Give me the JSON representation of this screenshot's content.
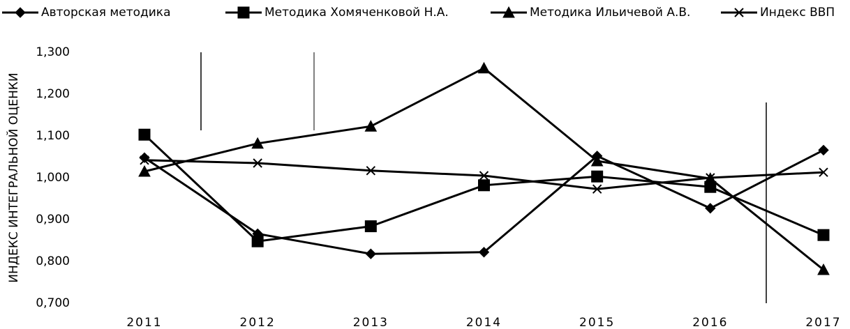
{
  "chart_data": {
    "type": "line",
    "y_label": "ИНДЕКС ИНТЕГРАЛЬНОЙ ОЦЕНКИ",
    "categories": [
      "2011",
      "2012",
      "2013",
      "2014",
      "2015",
      "2016",
      "2017"
    ],
    "series": [
      {
        "name": "Авторская методика",
        "color": "#000000",
        "marker": "diamond",
        "values": [
          1.048,
          0.866,
          0.818,
          0.822,
          1.052,
          0.927,
          1.066
        ]
      },
      {
        "name": "Методика Хомяченковой Н.А.",
        "color": "#000000",
        "marker": "square",
        "values": [
          1.103,
          0.848,
          0.884,
          0.982,
          1.003,
          0.978,
          0.863
        ]
      },
      {
        "name": "Методика Ильичевой А.В.",
        "color": "#000000",
        "marker": "triangle",
        "values": [
          1.015,
          1.082,
          1.123,
          1.262,
          1.04,
          0.998,
          0.78
        ]
      },
      {
        "name": "Индекс ВВП",
        "color": "#000000",
        "marker": "x",
        "values": [
          1.042,
          1.035,
          1.017,
          1.005,
          0.973,
          1.0,
          1.013
        ]
      }
    ],
    "ylim": [
      0.7,
      1.3
    ],
    "yticks": [
      {
        "value": 0.7,
        "label": "0,700"
      },
      {
        "value": 0.8,
        "label": "0,800"
      },
      {
        "value": 0.9,
        "label": "0,900"
      },
      {
        "value": 1.0,
        "label": "1,000"
      },
      {
        "value": 1.1,
        "label": "1,100"
      },
      {
        "value": 1.2,
        "label": "1,200"
      },
      {
        "value": 1.3,
        "label": "1,300"
      }
    ],
    "grid": false
  }
}
